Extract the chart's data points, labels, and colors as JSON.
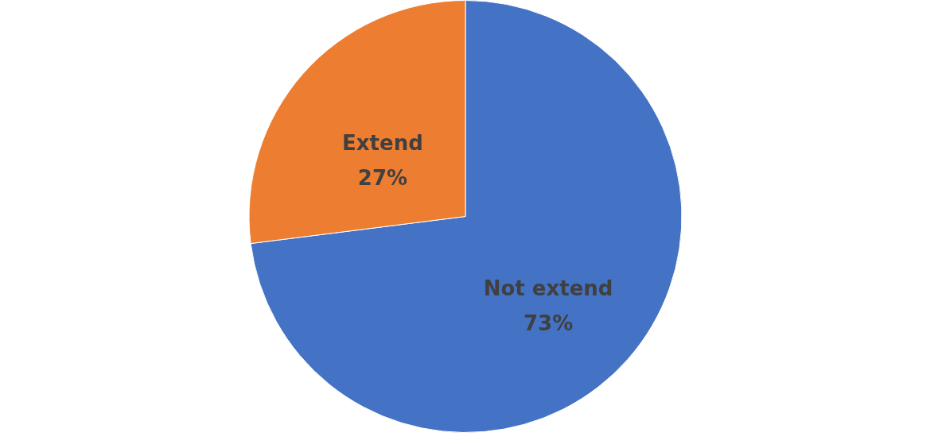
{
  "chart_data": {
    "type": "pie",
    "categories": [
      "Not extend",
      "Extend"
    ],
    "values": [
      73,
      27
    ],
    "colors": [
      "#4472c4",
      "#ed7d31"
    ],
    "value_labels": [
      "73%",
      "27%"
    ],
    "legend": false
  }
}
